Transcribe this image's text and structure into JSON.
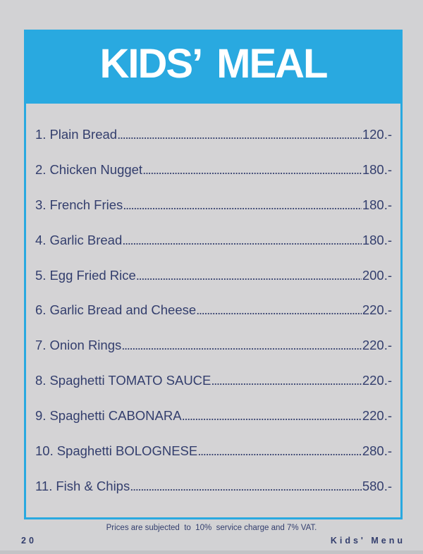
{
  "header": {
    "title": "KIDS’ MEAL"
  },
  "colors": {
    "accent_blue": "#29A9E0",
    "text_navy": "#333E6D",
    "background_gray": "#D2D2D4",
    "panel_gray": "#D4D3D5",
    "title_white": "#FFFFFF"
  },
  "menu": {
    "items": [
      {
        "number": "1.",
        "name": "Plain Bread",
        "price": "120.-"
      },
      {
        "number": "2.",
        "name": "Chicken Nugget",
        "price": "180.-"
      },
      {
        "number": "3.",
        "name": "French Fries",
        "price": "180.-"
      },
      {
        "number": "4.",
        "name": "Garlic Bread",
        "price": "180.-"
      },
      {
        "number": "5.",
        "name": "Egg Fried Rice",
        "price": "200.-"
      },
      {
        "number": "6.",
        "name": "Garlic Bread and Cheese",
        "price": "220.-"
      },
      {
        "number": "7.",
        "name": "Onion Rings",
        "price": "220.-"
      },
      {
        "number": "8.",
        "name": "Spaghetti TOMATO SAUCE",
        "price": "220.-"
      },
      {
        "number": "9.",
        "name": "Spaghetti CABONARA",
        "price": "220.-"
      },
      {
        "number": "10.",
        "name": "Spaghetti BOLOGNESE",
        "price": "280.-"
      },
      {
        "number": "11.",
        "name": "Fish & Chips",
        "price": "580.-"
      }
    ]
  },
  "footer": {
    "note": "Prices are subjected  to  10%  service charge and 7% VAT.",
    "page_number": "20",
    "section_label": "Kids' Menu"
  }
}
